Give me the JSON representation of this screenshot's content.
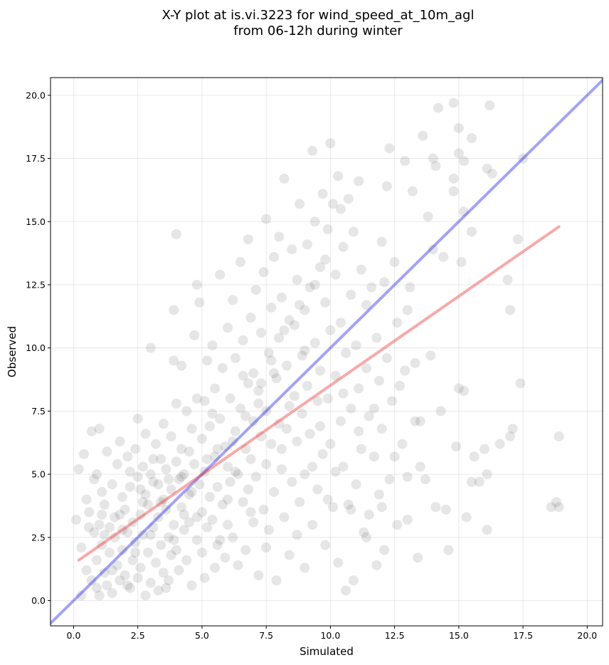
{
  "chart_data": {
    "type": "scatter",
    "title_line1": "X-Y plot at is.vi.3223 for wind_speed_at_10m_agl",
    "title_line2": "from 06-12h during winter",
    "xlabel": "Simulated",
    "ylabel": "Observed",
    "xlim": [
      -0.9,
      20.6
    ],
    "ylim": [
      -1.0,
      20.7
    ],
    "xticks": [
      0.0,
      2.5,
      5.0,
      7.5,
      10.0,
      12.5,
      15.0,
      17.5,
      20.0
    ],
    "yticks": [
      0.0,
      2.5,
      5.0,
      7.5,
      10.0,
      12.5,
      15.0,
      17.5,
      20.0
    ],
    "xtick_labels": [
      "0.0",
      "2.5",
      "5.0",
      "7.5",
      "10.0",
      "12.5",
      "15.0",
      "17.5",
      "20.0"
    ],
    "ytick_labels": [
      "0.0",
      "2.5",
      "5.0",
      "7.5",
      "10.0",
      "12.5",
      "15.0",
      "17.5",
      "20.0"
    ],
    "grid": true,
    "point_color": "#404040",
    "one_to_one_line": {
      "color": "#3333ee",
      "x": [
        -0.9,
        20.6
      ],
      "y": [
        -0.9,
        20.6
      ]
    },
    "fit_line": {
      "color": "#ee3333",
      "x": [
        0.2,
        18.9
      ],
      "y": [
        1.6,
        14.8
      ]
    },
    "points": [
      [
        0.1,
        3.2
      ],
      [
        0.2,
        5.2
      ],
      [
        0.3,
        2.1
      ],
      [
        0.4,
        5.8
      ],
      [
        0.5,
        4.0
      ],
      [
        0.5,
        1.2
      ],
      [
        0.6,
        3.5
      ],
      [
        0.7,
        0.8
      ],
      [
        0.7,
        6.7
      ],
      [
        0.8,
        2.7
      ],
      [
        0.8,
        4.8
      ],
      [
        0.9,
        1.6
      ],
      [
        0.9,
        5.0
      ],
      [
        1.0,
        0.2
      ],
      [
        1.0,
        3.0
      ],
      [
        1.0,
        6.8
      ],
      [
        1.1,
        2.2
      ],
      [
        1.1,
        4.3
      ],
      [
        1.2,
        1.1
      ],
      [
        1.2,
        3.8
      ],
      [
        1.3,
        0.6
      ],
      [
        1.3,
        5.9
      ],
      [
        1.4,
        2.9
      ],
      [
        1.4,
        1.9
      ],
      [
        1.5,
        4.6
      ],
      [
        1.5,
        0.3
      ],
      [
        1.6,
        3.3
      ],
      [
        1.6,
        2.5
      ],
      [
        1.7,
        5.4
      ],
      [
        1.7,
        1.4
      ],
      [
        1.8,
        6.3
      ],
      [
        1.8,
        0.8
      ],
      [
        1.9,
        2.0
      ],
      [
        1.9,
        4.1
      ],
      [
        2.0,
        3.6
      ],
      [
        2.0,
        1.0
      ],
      [
        2.1,
        5.7
      ],
      [
        2.1,
        2.7
      ],
      [
        2.2,
        0.5
      ],
      [
        2.2,
        4.5
      ],
      [
        2.3,
        3.1
      ],
      [
        2.3,
        1.6
      ],
      [
        2.4,
        6.0
      ],
      [
        2.4,
        2.3
      ],
      [
        2.5,
        0.9
      ],
      [
        2.5,
        4.9
      ],
      [
        2.5,
        7.2
      ],
      [
        2.6,
        3.4
      ],
      [
        2.6,
        1.3
      ],
      [
        2.7,
        5.3
      ],
      [
        2.7,
        2.6
      ],
      [
        2.8,
        0.2
      ],
      [
        2.8,
        4.2
      ],
      [
        2.8,
        6.6
      ],
      [
        2.9,
        1.9
      ],
      [
        2.9,
        3.8
      ],
      [
        3.0,
        10.0
      ],
      [
        3.0,
        5.0
      ],
      [
        3.0,
        0.7
      ],
      [
        3.1,
        2.9
      ],
      [
        3.1,
        4.7
      ],
      [
        3.2,
        1.5
      ],
      [
        3.2,
        6.2
      ],
      [
        3.3,
        3.3
      ],
      [
        3.3,
        0.4
      ],
      [
        3.4,
        5.6
      ],
      [
        3.4,
        2.2
      ],
      [
        3.5,
        4.0
      ],
      [
        3.5,
        7.0
      ],
      [
        3.5,
        1.1
      ],
      [
        3.6,
        3.6
      ],
      [
        3.6,
        5.2
      ],
      [
        3.7,
        2.5
      ],
      [
        3.7,
        0.8
      ],
      [
        3.8,
        6.5
      ],
      [
        3.8,
        4.4
      ],
      [
        3.8,
        1.8
      ],
      [
        3.9,
        9.5
      ],
      [
        3.9,
        3.0
      ],
      [
        3.9,
        11.5
      ],
      [
        4.0,
        5.5
      ],
      [
        4.0,
        14.5
      ],
      [
        4.0,
        2.0
      ],
      [
        4.0,
        7.8
      ],
      [
        4.1,
        4.8
      ],
      [
        4.1,
        1.2
      ],
      [
        4.2,
        3.7
      ],
      [
        4.2,
        6.0
      ],
      [
        4.2,
        9.3
      ],
      [
        4.3,
        2.8
      ],
      [
        4.3,
        5.0
      ],
      [
        4.4,
        1.6
      ],
      [
        4.4,
        7.5
      ],
      [
        4.5,
        4.2
      ],
      [
        4.5,
        3.1
      ],
      [
        4.6,
        6.8
      ],
      [
        4.6,
        0.6
      ],
      [
        4.7,
        5.4
      ],
      [
        4.7,
        10.5
      ],
      [
        4.8,
        2.4
      ],
      [
        4.8,
        12.5
      ],
      [
        4.8,
        8.0
      ],
      [
        4.9,
        4.6
      ],
      [
        4.9,
        11.8
      ],
      [
        5.0,
        3.5
      ],
      [
        5.0,
        6.4
      ],
      [
        5.0,
        1.9
      ],
      [
        5.1,
        7.9
      ],
      [
        5.1,
        5.1
      ],
      [
        5.2,
        9.5
      ],
      [
        5.2,
        2.9
      ],
      [
        5.3,
        4.1
      ],
      [
        5.3,
        6.9
      ],
      [
        5.4,
        3.2
      ],
      [
        5.4,
        10.1
      ],
      [
        5.5,
        1.3
      ],
      [
        5.5,
        8.4
      ],
      [
        5.5,
        5.7
      ],
      [
        5.6,
        4.5
      ],
      [
        5.6,
        2.2
      ],
      [
        5.7,
        7.2
      ],
      [
        5.7,
        12.9
      ],
      [
        5.8,
        3.8
      ],
      [
        5.8,
        9.2
      ],
      [
        5.9,
        6.1
      ],
      [
        5.9,
        1.7
      ],
      [
        6.0,
        5.3
      ],
      [
        6.0,
        10.8
      ],
      [
        6.0,
        3.0
      ],
      [
        6.1,
        8.0
      ],
      [
        6.1,
        4.7
      ],
      [
        6.2,
        11.9
      ],
      [
        6.2,
        2.5
      ],
      [
        6.3,
        6.7
      ],
      [
        6.3,
        9.6
      ],
      [
        6.4,
        5.0
      ],
      [
        6.4,
        1.4
      ],
      [
        6.5,
        7.6
      ],
      [
        6.5,
        13.4
      ],
      [
        6.6,
        3.9
      ],
      [
        6.6,
        10.3
      ],
      [
        6.7,
        6.0
      ],
      [
        6.7,
        2.0
      ],
      [
        6.8,
        8.6
      ],
      [
        6.8,
        4.4
      ],
      [
        6.8,
        14.3
      ],
      [
        6.9,
        11.2
      ],
      [
        6.9,
        5.6
      ],
      [
        7.0,
        3.1
      ],
      [
        7.0,
        9.0
      ],
      [
        7.0,
        7.1
      ],
      [
        7.1,
        12.3
      ],
      [
        7.1,
        4.9
      ],
      [
        7.2,
        1.0
      ],
      [
        7.2,
        8.3
      ],
      [
        7.3,
        6.5
      ],
      [
        7.3,
        10.6
      ],
      [
        7.4,
        3.6
      ],
      [
        7.4,
        13.0
      ],
      [
        7.5,
        7.5
      ],
      [
        7.5,
        5.4
      ],
      [
        7.5,
        15.1
      ],
      [
        7.6,
        9.8
      ],
      [
        7.6,
        2.8
      ],
      [
        7.7,
        11.6
      ],
      [
        7.7,
        6.2
      ],
      [
        7.8,
        4.3
      ],
      [
        7.8,
        13.6
      ],
      [
        7.9,
        8.8
      ],
      [
        7.9,
        0.8
      ],
      [
        8.0,
        10.4
      ],
      [
        8.0,
        7.0
      ],
      [
        8.0,
        14.4
      ],
      [
        8.1,
        5.2
      ],
      [
        8.1,
        12.0
      ],
      [
        8.2,
        3.3
      ],
      [
        8.2,
        16.7
      ],
      [
        8.3,
        9.3
      ],
      [
        8.3,
        6.8
      ],
      [
        8.4,
        11.1
      ],
      [
        8.4,
        1.8
      ],
      [
        8.5,
        13.9
      ],
      [
        8.5,
        4.7
      ],
      [
        8.6,
        8.1
      ],
      [
        8.6,
        10.9
      ],
      [
        8.7,
        6.3
      ],
      [
        8.7,
        12.7
      ],
      [
        8.8,
        3.9
      ],
      [
        8.8,
        15.7
      ],
      [
        8.9,
        9.7
      ],
      [
        8.9,
        7.4
      ],
      [
        9.0,
        11.5
      ],
      [
        9.0,
        5.0
      ],
      [
        9.0,
        1.3
      ],
      [
        9.1,
        14.1
      ],
      [
        9.1,
        8.5
      ],
      [
        9.2,
        12.4
      ],
      [
        9.2,
        6.6
      ],
      [
        9.3,
        17.8
      ],
      [
        9.3,
        3.0
      ],
      [
        9.4,
        10.2
      ],
      [
        9.4,
        15.0
      ],
      [
        9.5,
        7.9
      ],
      [
        9.5,
        4.4
      ],
      [
        9.6,
        13.2
      ],
      [
        9.6,
        9.1
      ],
      [
        9.7,
        16.1
      ],
      [
        9.7,
        5.8
      ],
      [
        9.8,
        11.8
      ],
      [
        9.8,
        2.2
      ],
      [
        9.9,
        14.7
      ],
      [
        9.9,
        8.0
      ],
      [
        10.0,
        18.1
      ],
      [
        10.0,
        10.7
      ],
      [
        10.0,
        6.2
      ],
      [
        10.1,
        15.7
      ],
      [
        10.1,
        3.7
      ],
      [
        10.2,
        12.9
      ],
      [
        10.2,
        8.9
      ],
      [
        10.3,
        16.8
      ],
      [
        10.3,
        1.5
      ],
      [
        10.4,
        7.1
      ],
      [
        10.4,
        11.0
      ],
      [
        10.5,
        14.0
      ],
      [
        10.5,
        5.3
      ],
      [
        10.6,
        9.8
      ],
      [
        10.6,
        0.4
      ],
      [
        10.7,
        15.9
      ],
      [
        10.7,
        3.8
      ],
      [
        10.8,
        12.1
      ],
      [
        10.8,
        7.6
      ],
      [
        10.9,
        14.6
      ],
      [
        10.9,
        0.8
      ],
      [
        11.0,
        10.1
      ],
      [
        11.0,
        4.6
      ],
      [
        11.1,
        16.6
      ],
      [
        11.1,
        8.4
      ],
      [
        11.2,
        13.1
      ],
      [
        11.2,
        6.0
      ],
      [
        11.3,
        2.7
      ],
      [
        11.4,
        11.7
      ],
      [
        11.4,
        9.2
      ],
      [
        11.5,
        7.3
      ],
      [
        11.5,
        3.4
      ],
      [
        11.6,
        12.4
      ],
      [
        11.7,
        5.7
      ],
      [
        11.8,
        10.4
      ],
      [
        11.8,
        1.4
      ],
      [
        11.9,
        8.7
      ],
      [
        11.9,
        4.2
      ],
      [
        12.0,
        14.2
      ],
      [
        12.0,
        6.8
      ],
      [
        12.1,
        12.6
      ],
      [
        12.1,
        2.0
      ],
      [
        12.2,
        9.6
      ],
      [
        12.2,
        16.4
      ],
      [
        12.3,
        17.9
      ],
      [
        12.3,
        4.8
      ],
      [
        12.4,
        7.9
      ],
      [
        12.5,
        13.4
      ],
      [
        12.5,
        5.7
      ],
      [
        12.6,
        11.0
      ],
      [
        12.6,
        3.0
      ],
      [
        12.7,
        8.5
      ],
      [
        12.8,
        6.2
      ],
      [
        12.9,
        17.4
      ],
      [
        12.9,
        9.1
      ],
      [
        13.0,
        11.5
      ],
      [
        13.0,
        4.9
      ],
      [
        13.0,
        3.2
      ],
      [
        13.1,
        12.4
      ],
      [
        13.2,
        16.2
      ],
      [
        13.3,
        9.4
      ],
      [
        13.3,
        7.1
      ],
      [
        13.4,
        1.7
      ],
      [
        13.5,
        5.3
      ],
      [
        13.5,
        7.1
      ],
      [
        13.6,
        18.4
      ],
      [
        13.7,
        4.8
      ],
      [
        13.8,
        15.2
      ],
      [
        13.9,
        9.7
      ],
      [
        14.0,
        17.5
      ],
      [
        14.0,
        13.9
      ],
      [
        14.1,
        3.7
      ],
      [
        14.1,
        17.2
      ],
      [
        14.2,
        19.5
      ],
      [
        14.3,
        7.5
      ],
      [
        14.4,
        13.6
      ],
      [
        14.5,
        3.6
      ],
      [
        14.6,
        2.0
      ],
      [
        14.8,
        19.7
      ],
      [
        14.8,
        16.2
      ],
      [
        14.8,
        16.7
      ],
      [
        14.9,
        6.1
      ],
      [
        15.0,
        18.7
      ],
      [
        15.0,
        17.7
      ],
      [
        15.0,
        8.4
      ],
      [
        15.1,
        13.4
      ],
      [
        15.2,
        17.4
      ],
      [
        15.2,
        15.4
      ],
      [
        15.2,
        8.3
      ],
      [
        15.3,
        3.3
      ],
      [
        15.5,
        18.3
      ],
      [
        15.5,
        14.6
      ],
      [
        15.5,
        4.7
      ],
      [
        15.6,
        5.7
      ],
      [
        15.8,
        4.7
      ],
      [
        16.0,
        6.0
      ],
      [
        16.1,
        17.1
      ],
      [
        16.1,
        2.8
      ],
      [
        16.1,
        5.0
      ],
      [
        16.2,
        19.6
      ],
      [
        16.3,
        16.9
      ],
      [
        16.6,
        6.2
      ],
      [
        16.9,
        12.7
      ],
      [
        17.0,
        11.5
      ],
      [
        17.0,
        6.5
      ],
      [
        17.1,
        6.8
      ],
      [
        17.3,
        14.3
      ],
      [
        17.4,
        8.6
      ],
      [
        17.5,
        17.5
      ],
      [
        18.6,
        3.7
      ],
      [
        18.8,
        3.9
      ],
      [
        18.9,
        3.7
      ],
      [
        18.9,
        6.5
      ],
      [
        0.3,
        0.2
      ],
      [
        0.6,
        2.9
      ],
      [
        0.9,
        0.5
      ],
      [
        1.2,
        2.6
      ],
      [
        1.5,
        1.2
      ],
      [
        1.8,
        3.4
      ],
      [
        2.1,
        0.6
      ],
      [
        2.4,
        1.9
      ],
      [
        2.7,
        3.9
      ],
      [
        3.0,
        2.6
      ],
      [
        3.3,
        4.6
      ],
      [
        3.6,
        0.5
      ],
      [
        3.9,
        2.4
      ],
      [
        4.2,
        4.9
      ],
      [
        4.5,
        5.9
      ],
      [
        4.8,
        3.3
      ],
      [
        5.1,
        0.9
      ],
      [
        5.4,
        7.4
      ],
      [
        5.7,
        2.4
      ],
      [
        6.0,
        4.0
      ],
      [
        6.3,
        5.1
      ],
      [
        6.6,
        8.9
      ],
      [
        6.9,
        3.5
      ],
      [
        7.2,
        7.8
      ],
      [
        7.5,
        2.1
      ],
      [
        7.8,
        9.0
      ],
      [
        8.1,
        6.0
      ],
      [
        8.4,
        7.7
      ],
      [
        8.7,
        2.6
      ],
      [
        9.0,
        9.9
      ],
      [
        9.3,
        5.3
      ],
      [
        9.6,
        6.9
      ],
      [
        9.9,
        4.0
      ],
      [
        10.2,
        5.1
      ],
      [
        10.5,
        8.2
      ],
      [
        10.8,
        3.6
      ],
      [
        11.1,
        6.7
      ],
      [
        11.4,
        2.5
      ],
      [
        11.7,
        7.6
      ],
      [
        12.0,
        3.7
      ],
      [
        1.1,
        3.4
      ],
      [
        1.9,
        2.8
      ],
      [
        2.2,
        5.1
      ],
      [
        2.6,
        4.4
      ],
      [
        3.1,
        5.6
      ],
      [
        3.4,
        3.9
      ],
      [
        3.7,
        4.8
      ],
      [
        4.3,
        3.4
      ],
      [
        4.6,
        4.3
      ],
      [
        5.2,
        5.6
      ],
      [
        5.6,
        6.0
      ],
      [
        6.2,
        6.3
      ],
      [
        6.7,
        7.3
      ],
      [
        7.3,
        8.6
      ],
      [
        7.7,
        9.5
      ],
      [
        8.2,
        10.7
      ],
      [
        8.8,
        11.7
      ],
      [
        9.4,
        12.5
      ],
      [
        9.8,
        13.5
      ],
      [
        10.4,
        15.5
      ]
    ]
  }
}
